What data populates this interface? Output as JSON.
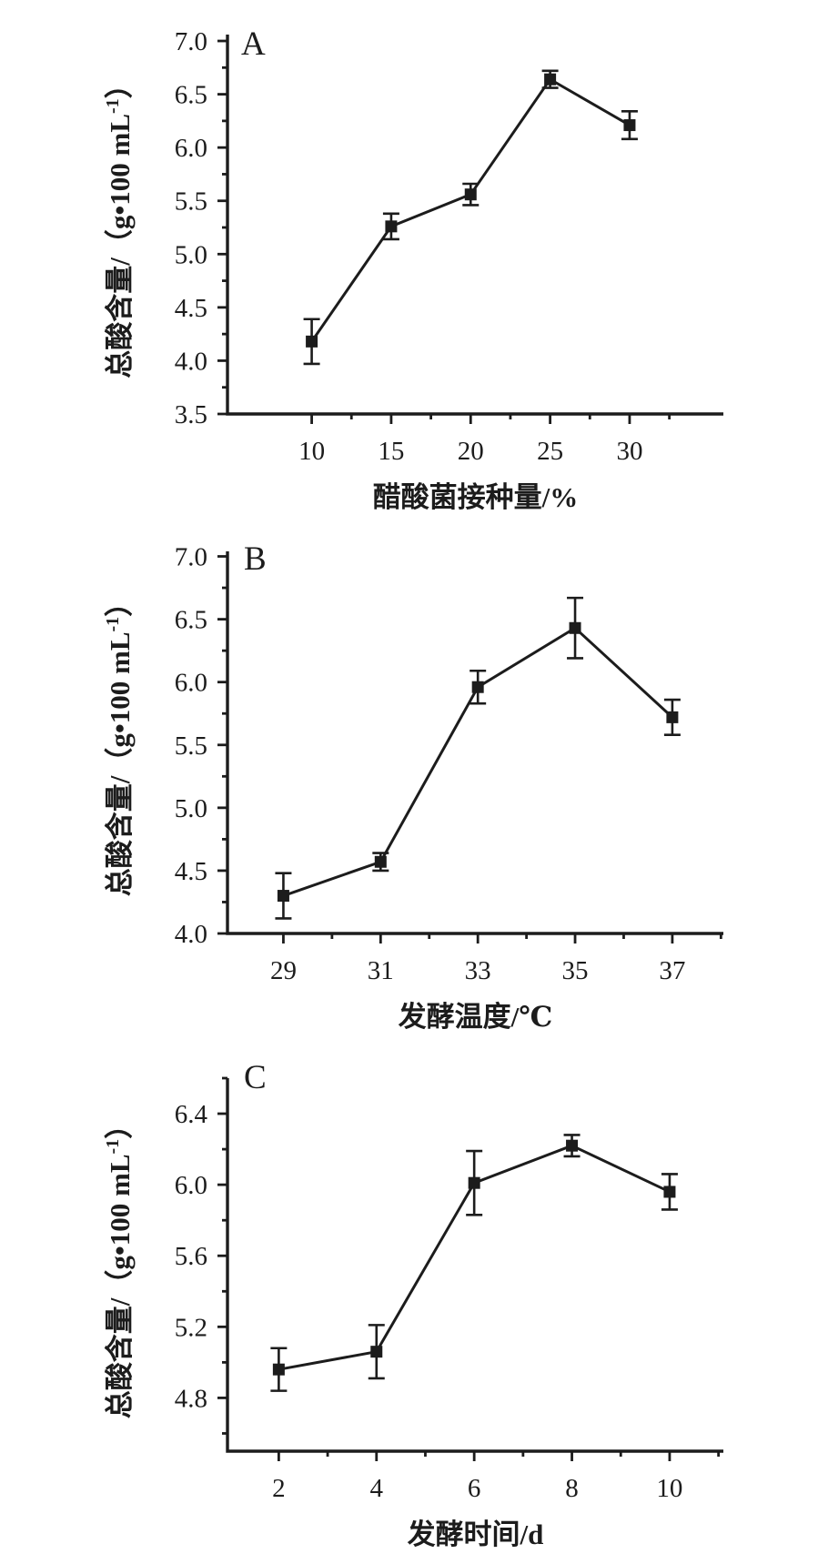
{
  "figure": {
    "background": "#ffffff",
    "ink_color": "#1c1c1c",
    "panel_labels": [
      "A",
      "B",
      "C"
    ]
  },
  "chart_data": [
    {
      "type": "line",
      "panel": "A",
      "title": "",
      "xlabel": "醋酸菌接种量/%",
      "ylabel": "总酸含量/（g•100 mL⁻¹）",
      "ylabel_parts": {
        "pre": "总酸含量/（g•100 mL",
        "sup": "-1",
        "post": "）"
      },
      "x": [
        10,
        15,
        20,
        25,
        30
      ],
      "y": [
        4.18,
        5.26,
        5.56,
        6.64,
        6.21
      ],
      "yerr": [
        0.21,
        0.12,
        0.1,
        0.08,
        0.13
      ],
      "xtick_labels": [
        "10",
        "15",
        "20",
        "25",
        "30"
      ],
      "xminor": [
        12.5,
        17.5,
        22.5,
        27.5,
        32.5
      ],
      "yticks": [
        3.5,
        4.0,
        4.5,
        5.0,
        5.5,
        6.0,
        6.5,
        7.0
      ],
      "ytick_labels": [
        "3.5",
        "4.0",
        "4.5",
        "5.0",
        "5.5",
        "6.0",
        "6.5",
        "7.0"
      ],
      "yminor": [
        3.75,
        4.25,
        4.75,
        5.25,
        5.75,
        6.25,
        6.75
      ],
      "xlim": [
        4.7,
        35.9
      ],
      "ylim": [
        3.5,
        7.06
      ],
      "grid": false,
      "legend": null,
      "marker": "filled-square",
      "line_color": "#1c1c1c"
    },
    {
      "type": "line",
      "panel": "B",
      "title": "",
      "xlabel": "发酵温度/℃",
      "ylabel": "总酸含量/（g•100 mL⁻¹）",
      "ylabel_parts": {
        "pre": "总酸含量/（g•100 mL",
        "sup": "-1",
        "post": "）"
      },
      "x": [
        29,
        31,
        33,
        35,
        37
      ],
      "y": [
        4.3,
        4.57,
        5.96,
        6.43,
        5.72
      ],
      "yerr": [
        0.18,
        0.07,
        0.13,
        0.24,
        0.14
      ],
      "xtick_labels": [
        "29",
        "31",
        "33",
        "35",
        "37"
      ],
      "xminor": [
        30,
        32,
        34,
        36,
        38
      ],
      "yticks": [
        4.0,
        4.5,
        5.0,
        5.5,
        6.0,
        6.5,
        7.0
      ],
      "ytick_labels": [
        "4.0",
        "4.5",
        "5.0",
        "5.5",
        "6.0",
        "6.5",
        "7.0"
      ],
      "yminor": [
        4.25,
        4.75,
        5.25,
        5.75,
        6.25,
        6.75
      ],
      "xlim": [
        27.85,
        38.05
      ],
      "ylim": [
        4.0,
        7.04
      ],
      "grid": false,
      "legend": null,
      "marker": "filled-square",
      "line_color": "#1c1c1c"
    },
    {
      "type": "line",
      "panel": "C",
      "title": "",
      "xlabel": "发酵时间/d",
      "ylabel": "总酸含量/（g•100 mL⁻¹）",
      "ylabel_parts": {
        "pre": "总酸含量/（g•100 mL",
        "sup": "-1",
        "post": "）"
      },
      "x": [
        2,
        4,
        6,
        8,
        10
      ],
      "y": [
        4.96,
        5.06,
        6.01,
        6.22,
        5.96
      ],
      "yerr": [
        0.12,
        0.15,
        0.18,
        0.06,
        0.1
      ],
      "xtick_labels": [
        "2",
        "4",
        "6",
        "8",
        "10"
      ],
      "xminor": [
        3,
        5,
        7,
        9,
        11
      ],
      "yticks": [
        4.8,
        5.2,
        5.6,
        6.0,
        6.4
      ],
      "ytick_labels": [
        "4.8",
        "5.2",
        "5.6",
        "6.0",
        "6.4"
      ],
      "yminor": [
        4.6,
        5.0,
        5.4,
        5.8,
        6.2,
        6.6
      ],
      "xlim": [
        0.95,
        11.1
      ],
      "ylim": [
        4.5,
        6.6
      ],
      "grid": false,
      "legend": null,
      "marker": "filled-square",
      "line_color": "#1c1c1c"
    }
  ]
}
